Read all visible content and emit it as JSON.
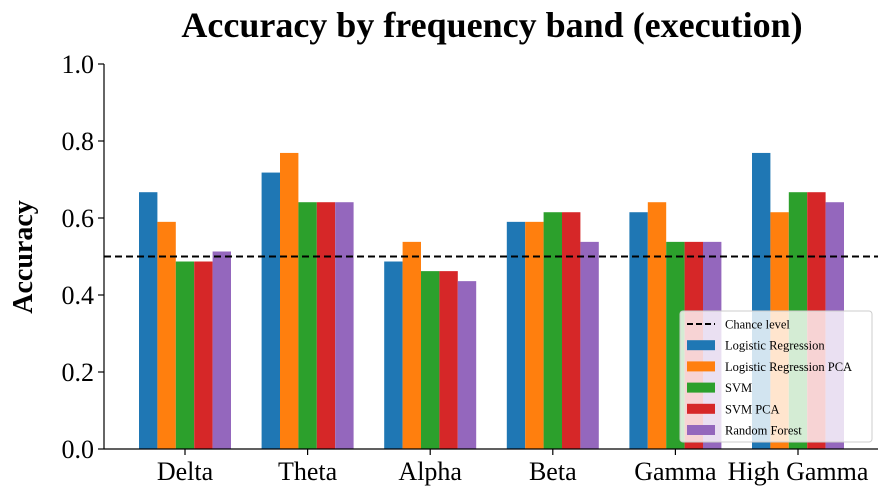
{
  "chart_data": {
    "type": "bar",
    "title": "Accuracy by frequency band (execution)",
    "xlabel": "",
    "ylabel": "Accuracy",
    "ylim": [
      0,
      1.0
    ],
    "yticks": [
      "0.0",
      "0.2",
      "0.4",
      "0.6",
      "0.8",
      "1.0"
    ],
    "categories": [
      "Delta",
      "Theta",
      "Alpha",
      "Beta",
      "Gamma",
      "High Gamma"
    ],
    "series": [
      {
        "name": "Logistic Regression",
        "color": "#1f77b4",
        "values": [
          0.667,
          0.718,
          0.487,
          0.59,
          0.615,
          0.769
        ]
      },
      {
        "name": "Logistic Regression PCA",
        "color": "#ff7f0e",
        "values": [
          0.59,
          0.769,
          0.538,
          0.59,
          0.641,
          0.615
        ]
      },
      {
        "name": "SVM",
        "color": "#2ca02c",
        "values": [
          0.487,
          0.641,
          0.462,
          0.615,
          0.538,
          0.667
        ]
      },
      {
        "name": "SVM PCA",
        "color": "#d62728",
        "values": [
          0.487,
          0.641,
          0.462,
          0.615,
          0.538,
          0.667
        ]
      },
      {
        "name": "Random Forest",
        "color": "#9467bd",
        "values": [
          0.513,
          0.641,
          0.436,
          0.538,
          0.538,
          0.641
        ]
      }
    ],
    "reference_line": {
      "name": "Chance level",
      "value": 0.5,
      "style": "dashed",
      "color": "#000000"
    },
    "grid": false,
    "legend_position": "bottom-right"
  }
}
